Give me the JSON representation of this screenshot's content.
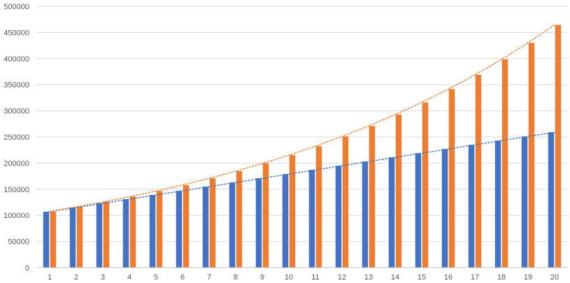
{
  "chart_data": {
    "type": "bar",
    "title": "",
    "xlabel": "",
    "ylabel": "",
    "ylim": [
      0,
      500000
    ],
    "yticks": [
      0,
      50000,
      100000,
      150000,
      200000,
      250000,
      300000,
      350000,
      400000,
      450000,
      500000
    ],
    "grid": true,
    "legend": "none",
    "categories": [
      "1",
      "2",
      "3",
      "4",
      "5",
      "6",
      "7",
      "8",
      "9",
      "10",
      "11",
      "12",
      "13",
      "14",
      "15",
      "16",
      "17",
      "18",
      "19",
      "20"
    ],
    "series": [
      {
        "color": "#4472C4",
        "values": [
          107000,
          115000,
          123000,
          131000,
          139000,
          147000,
          155000,
          163000,
          171000,
          179000,
          187000,
          195000,
          203000,
          211000,
          219000,
          227000,
          235000,
          243000,
          251000,
          259000
        ],
        "trendline": "linear"
      },
      {
        "color": "#ED7D31",
        "values": [
          107000,
          116600,
          126000,
          136000,
          146500,
          158000,
          171000,
          184500,
          199500,
          215500,
          232500,
          251000,
          271000,
          293000,
          316000,
          341500,
          369000,
          398500,
          430000,
          464500
        ],
        "trendline": "exponential"
      }
    ],
    "gridline_color": "#D9D9D9",
    "axis_color": "#BFBFBF",
    "text_color": "#595959"
  }
}
